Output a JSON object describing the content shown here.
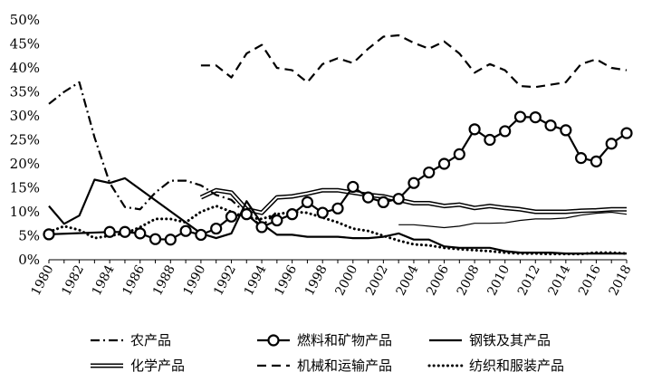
{
  "chart_data": {
    "type": "line",
    "title": "",
    "xlabel": "",
    "ylabel": "",
    "ylim": [
      0,
      0.5
    ],
    "y_ticks": [
      "0%",
      "5%",
      "10%",
      "15%",
      "20%",
      "25%",
      "30%",
      "35%",
      "40%",
      "45%",
      "50%"
    ],
    "x_ticks": [
      "1980",
      "1982",
      "1984",
      "1986",
      "1988",
      "1990",
      "1992",
      "1994",
      "1996",
      "1998",
      "2000",
      "2002",
      "2004",
      "2006",
      "2008",
      "2010",
      "2012",
      "2014",
      "2016",
      "2018"
    ],
    "grid": false,
    "legend_position": "bottom",
    "series": [
      {
        "name": "农产品",
        "style": "dash-dot",
        "x": [
          1980,
          1981,
          1982,
          1983,
          1984,
          1985,
          1986,
          1987,
          1988,
          1989,
          1990,
          1991,
          1992,
          1993,
          1994,
          1995
        ],
        "values": [
          0.325,
          0.35,
          0.37,
          0.255,
          0.16,
          0.11,
          0.105,
          0.14,
          0.165,
          0.165,
          0.155,
          0.135,
          0.125,
          0.095,
          0.07,
          0.1
        ]
      },
      {
        "name": "燃料和矿物产品",
        "style": "line-circle-markers",
        "x": [
          1980,
          1984,
          1985,
          1986,
          1987,
          1988,
          1989,
          1990,
          1991,
          1992,
          1993,
          1994,
          1995,
          1996,
          1997,
          1998,
          1999,
          2000,
          2001,
          2002,
          2003,
          2004,
          2005,
          2006,
          2007,
          2008,
          2009,
          2010,
          2011,
          2012,
          2013,
          2014,
          2015,
          2016,
          2017,
          2018
        ],
        "values": [
          0.053,
          0.058,
          0.058,
          0.055,
          0.043,
          0.042,
          0.06,
          0.052,
          0.065,
          0.09,
          0.095,
          0.068,
          0.082,
          0.095,
          0.12,
          0.098,
          0.107,
          0.152,
          0.13,
          0.12,
          0.127,
          0.16,
          0.182,
          0.2,
          0.22,
          0.272,
          0.25,
          0.268,
          0.298,
          0.297,
          0.28,
          0.27,
          0.212,
          0.205,
          0.242,
          0.264
        ]
      },
      {
        "name": "钢铁及其产品",
        "style": "solid",
        "x": [
          1980,
          1981,
          1982,
          1983,
          1984,
          1985,
          1990,
          1991,
          1992,
          1993,
          1994,
          1995,
          1996,
          1997,
          1998,
          1999,
          2000,
          2001,
          2002,
          2003,
          2004,
          2005,
          2006,
          2007,
          2008,
          2009,
          2010,
          2011,
          2012,
          2013,
          2014,
          2015,
          2016,
          2017,
          2018
        ],
        "values": [
          0.112,
          0.075,
          0.092,
          0.167,
          0.16,
          0.17,
          0.055,
          0.045,
          0.055,
          0.122,
          0.075,
          0.052,
          0.052,
          0.048,
          0.048,
          0.048,
          0.045,
          0.045,
          0.048,
          0.055,
          0.042,
          0.042,
          0.028,
          0.025,
          0.025,
          0.025,
          0.018,
          0.015,
          0.015,
          0.015,
          0.013,
          0.013,
          0.013,
          0.013,
          0.013
        ]
      },
      {
        "name": "化学产品",
        "style": "double-line",
        "x": [
          1990,
          1991,
          1992,
          1993,
          1994,
          1995,
          1996,
          1997,
          1998,
          1999,
          2000,
          2001,
          2002,
          2003,
          2004,
          2005,
          2006,
          2007,
          2008,
          2009,
          2010,
          2011,
          2012,
          2013,
          2014,
          2015,
          2016,
          2017,
          2018
        ],
        "values": [
          0.13,
          0.145,
          0.14,
          0.105,
          0.098,
          0.13,
          0.132,
          0.138,
          0.145,
          0.145,
          0.14,
          0.135,
          0.132,
          0.125,
          0.118,
          0.118,
          0.112,
          0.115,
          0.108,
          0.112,
          0.108,
          0.105,
          0.1,
          0.1,
          0.1,
          0.102,
          0.103,
          0.105,
          0.105
        ]
      },
      {
        "name": "机械和运输产品",
        "style": "dashed",
        "x": [
          1990,
          1991,
          1992,
          1993,
          1994,
          1995,
          1996,
          1997,
          1998,
          1999,
          2000,
          2001,
          2002,
          2003,
          2004,
          2005,
          2006,
          2007,
          2008,
          2009,
          2010,
          2011,
          2012,
          2013,
          2014,
          2015,
          2016,
          2017,
          2018
        ],
        "values": [
          0.405,
          0.405,
          0.38,
          0.43,
          0.448,
          0.4,
          0.395,
          0.37,
          0.408,
          0.42,
          0.41,
          0.44,
          0.465,
          0.468,
          0.452,
          0.44,
          0.455,
          0.43,
          0.39,
          0.408,
          0.395,
          0.362,
          0.36,
          0.365,
          0.37,
          0.408,
          0.418,
          0.4,
          0.395
        ]
      },
      {
        "name": "纺织和服装产品",
        "style": "dotted",
        "x": [
          1980,
          1981,
          1982,
          1983,
          1984,
          1985,
          1986,
          1987,
          1988,
          1989,
          1990,
          1991,
          1992,
          1993,
          1994,
          1995,
          1996,
          1997,
          1998,
          1999,
          2000,
          2001,
          2002,
          2003,
          2004,
          2005,
          2006,
          2007,
          2008,
          2009,
          2010,
          2011,
          2012,
          2013,
          2014,
          2015,
          2016,
          2017,
          2018
        ],
        "values": [
          0.058,
          0.07,
          0.062,
          0.045,
          0.05,
          0.055,
          0.068,
          0.085,
          0.085,
          0.078,
          0.1,
          0.112,
          0.1,
          0.088,
          0.085,
          0.095,
          0.1,
          0.098,
          0.088,
          0.078,
          0.065,
          0.06,
          0.05,
          0.04,
          0.032,
          0.03,
          0.025,
          0.022,
          0.02,
          0.018,
          0.015,
          0.013,
          0.013,
          0.012,
          0.012,
          0.012,
          0.015,
          0.015,
          0.013
        ]
      },
      {
        "name": "",
        "style": "solid-thin",
        "note_series_unlabeled": false,
        "x": [
          2003,
          2004,
          2005,
          2006,
          2007,
          2008,
          2009,
          2010,
          2011,
          2012,
          2013,
          2014,
          2015,
          2016,
          2017,
          2018
        ],
        "values": [
          0.073,
          0.073,
          0.07,
          0.067,
          0.07,
          0.076,
          0.076,
          0.077,
          0.082,
          0.085,
          0.085,
          0.087,
          0.093,
          0.097,
          0.099,
          0.095
        ]
      }
    ]
  }
}
